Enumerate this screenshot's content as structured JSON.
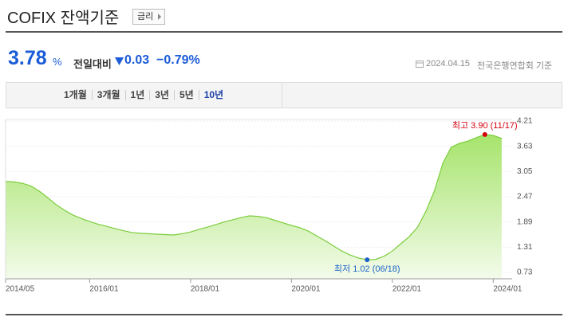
{
  "header": {
    "title": "COFIX 잔액기준",
    "button": "금리"
  },
  "summary": {
    "value": "3.78",
    "unit": "%",
    "change_label": "전일대비",
    "change": "0.03",
    "change_pct": "−0.79%",
    "date": "2024.04.15",
    "source": "전국은행연합회 기준"
  },
  "tabs": [
    "1개월",
    "3개월",
    "1년",
    "3년",
    "5년",
    "10년"
  ],
  "active_tab": 5,
  "chart_data": {
    "type": "area",
    "categories": [
      "2014/05",
      null,
      null,
      null,
      null,
      null,
      null,
      null,
      null,
      null,
      "2016/01",
      null,
      null,
      null,
      null,
      null,
      null,
      null,
      null,
      null,
      null,
      null,
      "2018/01",
      null,
      null,
      null,
      null,
      null,
      null,
      null,
      null,
      null,
      null,
      null,
      "2020/01",
      null,
      null,
      null,
      null,
      null,
      null,
      null,
      null,
      null,
      null,
      null,
      "2022/01",
      null,
      null,
      null,
      null,
      null,
      null,
      null,
      null,
      null,
      null,
      null,
      "2024/01",
      null
    ],
    "values": [
      2.82,
      2.81,
      2.78,
      2.72,
      2.6,
      2.45,
      2.29,
      2.16,
      2.05,
      1.97,
      1.9,
      1.84,
      1.79,
      1.74,
      1.69,
      1.65,
      1.63,
      1.62,
      1.61,
      1.6,
      1.59,
      1.62,
      1.66,
      1.72,
      1.77,
      1.83,
      1.89,
      1.94,
      1.99,
      2.03,
      2.02,
      1.99,
      1.93,
      1.87,
      1.81,
      1.76,
      1.68,
      1.57,
      1.46,
      1.34,
      1.22,
      1.13,
      1.06,
      1.02,
      1.03,
      1.1,
      1.22,
      1.39,
      1.55,
      1.77,
      2.14,
      2.6,
      3.24,
      3.61,
      3.7,
      3.75,
      3.83,
      3.9,
      3.88,
      3.81
    ],
    "color": "#7ccd3c",
    "ylim": [
      0.73,
      4.21
    ],
    "yticks": [
      4.21,
      3.63,
      3.05,
      2.47,
      1.89,
      1.31,
      0.73
    ],
    "grid": true,
    "annotations": [
      {
        "kind": "max",
        "text": "최고 3.90 (11/17)",
        "color": "#d4000f"
      },
      {
        "kind": "min",
        "text": "최저 1.02 (06/18)",
        "color": "#1d64c8"
      }
    ]
  }
}
